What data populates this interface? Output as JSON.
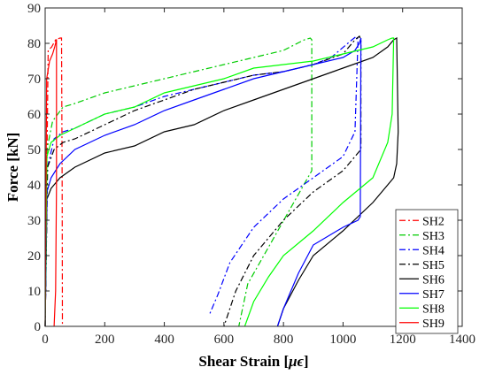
{
  "chart_data": {
    "type": "line",
    "xlabel": "Shear Strain [",
    "xlabel_symbol": "μϵ",
    "xlabel_end": "]",
    "ylabel": "Force [kN]",
    "xlim": [
      0,
      1400
    ],
    "ylim": [
      0,
      90
    ],
    "xticks": [
      "0",
      "200",
      "400",
      "600",
      "800",
      "1000",
      "1200",
      "1400"
    ],
    "yticks": [
      "0",
      "10",
      "20",
      "30",
      "40",
      "50",
      "60",
      "70",
      "80",
      "90"
    ],
    "grid": false,
    "legend_position": "bottom-right",
    "series": [
      {
        "name": "SH2",
        "color": "#ff0000",
        "dash": "7,3,2,3",
        "x": [
          0,
          10,
          22,
          35,
          50,
          55,
          57,
          58
        ],
        "y": [
          0,
          78,
          79,
          81,
          81.5,
          81.5,
          40,
          0
        ]
      },
      {
        "name": "SH3",
        "color": "#00cc00",
        "dash": "7,3,2,3",
        "x": [
          0,
          6,
          25,
          60,
          100,
          200,
          300,
          400,
          500,
          600,
          700,
          800,
          870,
          890,
          895,
          895,
          680,
          650
        ],
        "y": [
          0,
          50,
          58,
          62,
          63,
          66,
          68,
          70,
          72,
          74,
          76,
          78,
          81,
          81.5,
          81,
          44,
          12,
          0
        ]
      },
      {
        "name": "SH4",
        "color": "#0000ff",
        "dash": "7,3,2,3",
        "x": [
          0,
          8,
          30,
          60,
          100,
          200,
          300,
          400,
          500,
          600,
          700,
          800,
          900,
          960,
          1030,
          1045,
          1050,
          1040,
          1000,
          900,
          800,
          700,
          620,
          580,
          550
        ],
        "y": [
          0,
          45,
          53,
          55,
          56,
          60,
          62,
          65,
          67,
          69,
          71,
          72,
          74,
          76,
          81,
          82,
          81,
          55,
          48,
          42,
          36,
          28,
          18,
          9,
          3
        ]
      },
      {
        "name": "SH5",
        "color": "#000000",
        "dash": "7,3,2,3",
        "x": [
          0,
          8,
          30,
          60,
          100,
          200,
          300,
          400,
          500,
          600,
          700,
          800,
          900,
          1000,
          1040,
          1055,
          1060,
          1060,
          1000,
          900,
          800,
          700,
          640,
          600
        ],
        "y": [
          0,
          45,
          50,
          52,
          53,
          57,
          61,
          64,
          67,
          69,
          71,
          72,
          74,
          77,
          81,
          82,
          81,
          50,
          44,
          38,
          30,
          20,
          10,
          0
        ]
      },
      {
        "name": "SH6",
        "color": "#000000",
        "dash": "",
        "x": [
          0,
          6,
          20,
          50,
          100,
          200,
          300,
          400,
          500,
          600,
          700,
          800,
          900,
          1000,
          1100,
          1150,
          1170,
          1180,
          1185,
          1180,
          1170,
          1150,
          1100,
          1000,
          900,
          850,
          800,
          780
        ],
        "y": [
          0,
          36,
          39,
          42,
          45,
          49,
          51,
          55,
          57,
          61,
          64,
          67,
          70,
          73,
          76,
          79,
          81,
          81.5,
          55,
          46,
          42,
          40,
          35,
          27,
          20,
          13,
          5,
          0
        ]
      },
      {
        "name": "SH7",
        "color": "#0000ff",
        "dash": "",
        "x": [
          0,
          6,
          20,
          50,
          100,
          200,
          300,
          400,
          500,
          600,
          700,
          800,
          900,
          1000,
          1040,
          1055,
          1060,
          1058,
          1050,
          1000,
          900,
          850,
          800,
          780
        ],
        "y": [
          0,
          38,
          42,
          46,
          50,
          54,
          57,
          61,
          64,
          67,
          70,
          72,
          74,
          76,
          78,
          80,
          81.5,
          31,
          30,
          28,
          23,
          15,
          5,
          0
        ]
      },
      {
        "name": "SH8",
        "color": "#00ff00",
        "dash": "",
        "x": [
          0,
          6,
          20,
          50,
          100,
          200,
          300,
          400,
          500,
          600,
          700,
          800,
          900,
          1000,
          1100,
          1150,
          1165,
          1170,
          1165,
          1150,
          1100,
          1000,
          900,
          800,
          750,
          700,
          670
        ],
        "y": [
          0,
          48,
          52,
          54,
          56,
          60,
          62,
          66,
          68,
          70,
          73,
          74,
          75,
          77,
          79,
          81,
          81.5,
          81.5,
          60,
          52,
          42,
          35,
          27,
          20,
          14,
          7,
          0
        ]
      },
      {
        "name": "SH9",
        "color": "#ff0000",
        "dash": "",
        "x": [
          0,
          5,
          15,
          25,
          32,
          35,
          37,
          38,
          38,
          35,
          30
        ],
        "y": [
          0,
          70,
          75,
          77,
          79,
          80,
          81,
          81,
          40,
          10,
          0
        ]
      }
    ]
  }
}
